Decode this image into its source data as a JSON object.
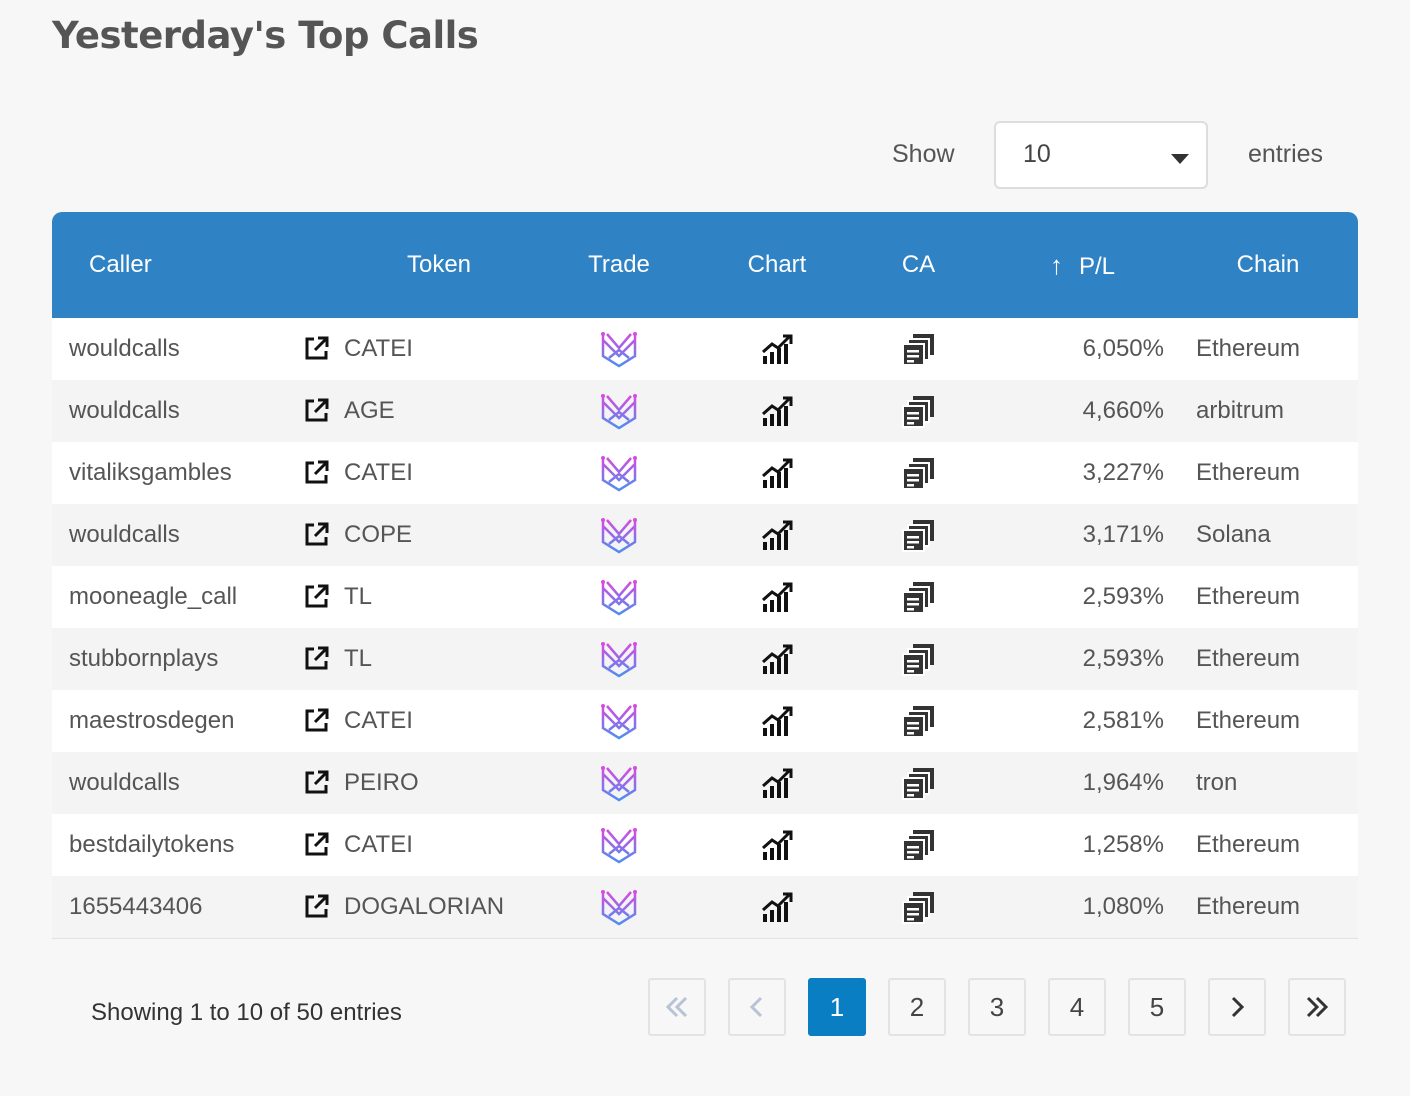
{
  "page": {
    "title": "Yesterday's Top Calls"
  },
  "length_menu": {
    "show_label": "Show",
    "selected": "10",
    "entries_label": "entries"
  },
  "table": {
    "headers": {
      "caller": "Caller",
      "token": "Token",
      "trade": "Trade",
      "chart": "Chart",
      "ca": "CA",
      "pl": "P/L",
      "chain": "Chain"
    },
    "sort": {
      "column": "pl",
      "arrow": "↑"
    },
    "rows": [
      {
        "caller": "wouldcalls",
        "token": "CATEI",
        "pl": "6,050%",
        "chain": "Ethereum"
      },
      {
        "caller": "wouldcalls",
        "token": "AGE",
        "pl": "4,660%",
        "chain": "arbitrum"
      },
      {
        "caller": "vitaliksgambles",
        "token": "CATEI",
        "pl": "3,227%",
        "chain": "Ethereum"
      },
      {
        "caller": "wouldcalls",
        "token": "COPE",
        "pl": "3,171%",
        "chain": "Solana"
      },
      {
        "caller": "mooneagle_call",
        "token": "TL",
        "pl": "2,593%",
        "chain": "Ethereum"
      },
      {
        "caller": "stubbornplays",
        "token": "TL",
        "pl": "2,593%",
        "chain": "Ethereum"
      },
      {
        "caller": "maestrosdegen",
        "token": "CATEI",
        "pl": "2,581%",
        "chain": "Ethereum"
      },
      {
        "caller": "wouldcalls",
        "token": "PEIRO",
        "pl": "1,964%",
        "chain": "tron"
      },
      {
        "caller": "bestdailytokens",
        "token": "CATEI",
        "pl": "1,258%",
        "chain": "Ethereum"
      },
      {
        "caller": "1655443406",
        "token": "DOGALORIAN",
        "pl": "1,080%",
        "chain": "Ethereum"
      }
    ],
    "row_icons": {
      "caller_link": "external-link-icon",
      "trade": "maestro-bot-icon",
      "chart": "chart-growth-icon",
      "ca": "copy-contract-icon"
    }
  },
  "footer": {
    "info": "Showing 1 to 10 of 50 entries",
    "pagination": {
      "first": "«",
      "prev": "‹",
      "pages": [
        "1",
        "2",
        "3",
        "4",
        "5"
      ],
      "current": "1",
      "next": "›",
      "last": "»"
    }
  },
  "colors": {
    "header_bg": "#2f82c4",
    "active_page": "#0a7ec2",
    "trade_icon_gradient": [
      "#d54ce0",
      "#4f8df2"
    ]
  }
}
